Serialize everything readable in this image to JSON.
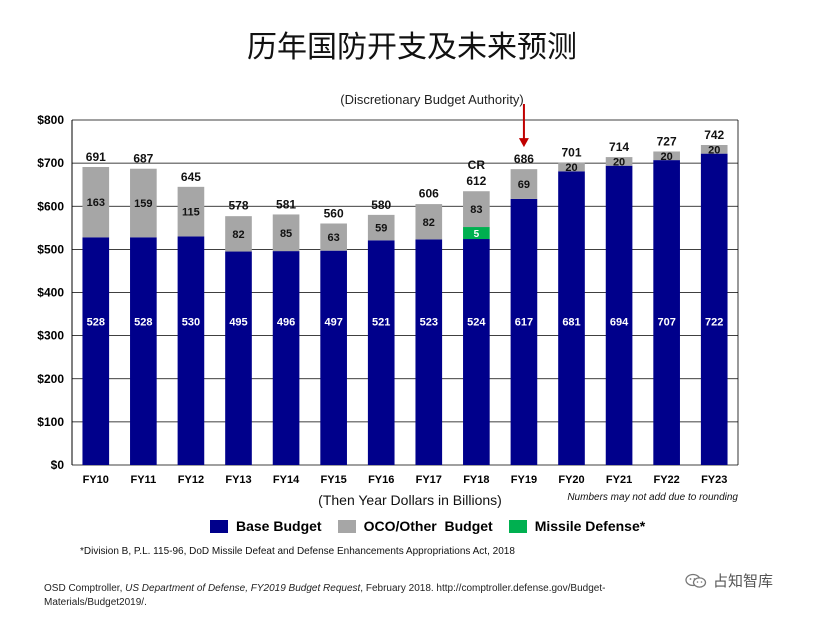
{
  "page": {
    "title": "历年国防开支及未来预测",
    "source_prefix": "OSD Comptroller, ",
    "source_italic": "US Department of Defense, FY2019 Budget Request",
    "source_suffix": ", February 2018. http://comptroller.defense.gov/Budget-Materials/Budget2019/.",
    "watermark": "占知智库",
    "watermark_icon": "wechat-icon"
  },
  "chart_data": {
    "type": "bar",
    "stacked": true,
    "subtitle": "(Discretionary Budget Authority)",
    "xlabel": "(Then Year Dollars in Billions)",
    "note": "Numbers may not add due to rounding",
    "footnote": "*Division B, P.L. 115-96, DoD Missile Defeat and Defense Enhancements Appropriations Act, 2018",
    "ylim": [
      0,
      800
    ],
    "yticks": [
      "$0",
      "$100",
      "$200",
      "$300",
      "$400",
      "$500",
      "$600",
      "$700",
      "$800"
    ],
    "grid": true,
    "legend_position": "bottom",
    "categories": [
      "FY10",
      "FY11",
      "FY12",
      "FY13",
      "FY14",
      "FY15",
      "FY16",
      "FY17",
      "FY18",
      "FY19",
      "FY20",
      "FY21",
      "FY22",
      "FY23"
    ],
    "totals": [
      691,
      687,
      645,
      578,
      581,
      560,
      580,
      606,
      612,
      686,
      701,
      714,
      727,
      742
    ],
    "series": [
      {
        "name": "Base Budget",
        "color": "#00008B",
        "values": [
          528,
          528,
          530,
          495,
          496,
          497,
          521,
          523,
          524,
          617,
          681,
          694,
          707,
          722
        ]
      },
      {
        "name": "Missile Defense*",
        "color": "#00B050",
        "values": [
          0,
          0,
          0,
          0,
          0,
          0,
          0,
          0,
          5,
          0,
          0,
          0,
          0,
          0
        ]
      },
      {
        "name": "OCO/Other  Budget",
        "color": "#A6A6A6",
        "values": [
          163,
          159,
          115,
          82,
          85,
          63,
          59,
          82,
          83,
          69,
          20,
          20,
          20,
          20
        ]
      }
    ],
    "legend_order": [
      "Base Budget",
      "OCO/Other  Budget",
      "Missile Defense*"
    ],
    "annotations": [
      {
        "category": "FY18",
        "text": "CR"
      },
      {
        "category": "FY19",
        "text": "arrow",
        "color": "#C00000"
      }
    ]
  }
}
